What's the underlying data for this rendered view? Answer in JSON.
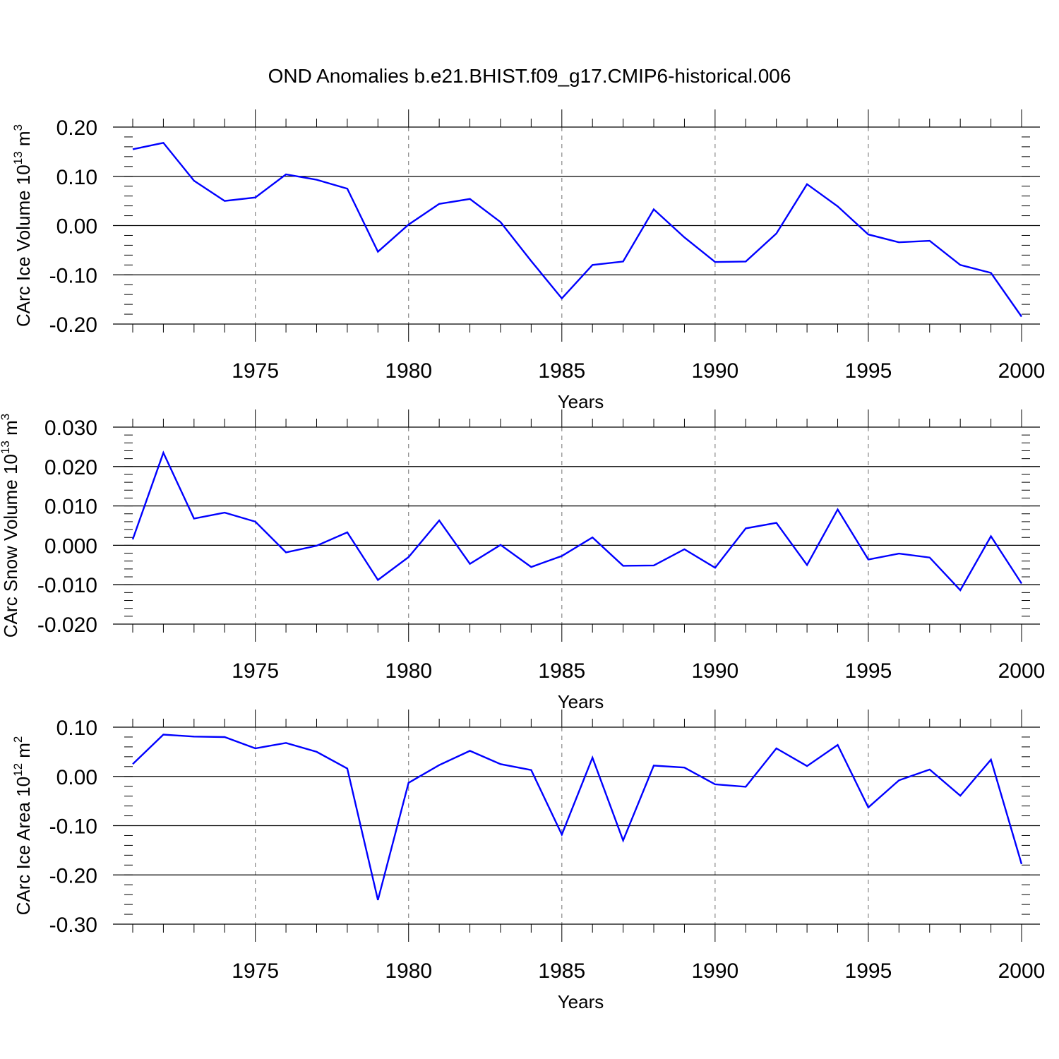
{
  "title": "OND Anomalies b.e21.BHIST.f09_g17.CMIP6-historical.006",
  "colors": {
    "line": "#0000ff",
    "axis": "#000000",
    "grid": "#888888"
  },
  "chart_data": [
    {
      "type": "line",
      "ylabel": "CArc Ice Volume 10",
      "ylabel_exp": "13",
      "ylabel_unit": " m",
      "ylabel_unit_exp": "3",
      "xlabel": "Years",
      "xlim": [
        1971,
        2000
      ],
      "ylim": [
        -0.2,
        0.2
      ],
      "yticks": [
        0.2,
        0.1,
        0.0,
        -0.1,
        -0.2
      ],
      "ytick_labels": [
        "0.20",
        "0.10",
        "0.00",
        "-0.10",
        "-0.20"
      ],
      "ytick_minor_step": 0.02,
      "xticks": [
        1975,
        1980,
        1985,
        1990,
        1995,
        2000
      ],
      "xtick_labels": [
        "1975",
        "1980",
        "1985",
        "1990",
        "1995",
        "2000"
      ],
      "grid_x": [
        1975,
        1980,
        1985,
        1990,
        1995
      ],
      "x": [
        1971,
        1972,
        1973,
        1974,
        1975,
        1976,
        1977,
        1978,
        1979,
        1980,
        1981,
        1982,
        1983,
        1984,
        1985,
        1986,
        1987,
        1988,
        1989,
        1990,
        1991,
        1992,
        1993,
        1994,
        1995,
        1996,
        1997,
        1998,
        1999,
        2000
      ],
      "values": [
        0.155,
        0.168,
        0.091,
        0.05,
        0.057,
        0.104,
        0.093,
        0.075,
        -0.053,
        0.002,
        0.044,
        0.054,
        0.007,
        -0.072,
        -0.148,
        -0.08,
        -0.073,
        0.033,
        -0.024,
        -0.074,
        -0.073,
        -0.016,
        0.084,
        0.039,
        -0.018,
        -0.034,
        -0.031,
        -0.08,
        -0.096,
        -0.185
      ]
    },
    {
      "type": "line",
      "ylabel": "CArc Snow Volume 10",
      "ylabel_exp": "13",
      "ylabel_unit": " m",
      "ylabel_unit_exp": "3",
      "xlabel": "Years",
      "xlim": [
        1971,
        2000
      ],
      "ylim": [
        -0.02,
        0.03
      ],
      "yticks": [
        0.03,
        0.02,
        0.01,
        0.0,
        -0.01,
        -0.02
      ],
      "ytick_labels": [
        "0.030",
        "0.020",
        "0.010",
        "0.000",
        "-0.010",
        "-0.020"
      ],
      "ytick_minor_step": 0.002,
      "xticks": [
        1975,
        1980,
        1985,
        1990,
        1995,
        2000
      ],
      "xtick_labels": [
        "1975",
        "1980",
        "1985",
        "1990",
        "1995",
        "2000"
      ],
      "grid_x": [
        1975,
        1980,
        1985,
        1990,
        1995
      ],
      "x": [
        1971,
        1972,
        1973,
        1974,
        1975,
        1976,
        1977,
        1978,
        1979,
        1980,
        1981,
        1982,
        1983,
        1984,
        1985,
        1986,
        1987,
        1988,
        1989,
        1990,
        1991,
        1992,
        1993,
        1994,
        1995,
        1996,
        1997,
        1998,
        1999,
        2000
      ],
      "values": [
        0.0015,
        0.0235,
        0.0068,
        0.0083,
        0.006,
        -0.0018,
        -0.0001,
        0.0033,
        -0.0088,
        -0.003,
        0.0063,
        -0.0047,
        0.0001,
        -0.0055,
        -0.0027,
        0.002,
        -0.0052,
        -0.0051,
        -0.001,
        -0.0057,
        0.0043,
        0.0057,
        -0.005,
        0.0091,
        -0.0036,
        -0.0021,
        -0.0031,
        -0.0114,
        0.0023,
        -0.0097
      ]
    },
    {
      "type": "line",
      "ylabel": "CArc Ice Area 10",
      "ylabel_exp": "12",
      "ylabel_unit": " m",
      "ylabel_unit_exp": "2",
      "xlabel": "Years",
      "xlim": [
        1971,
        2000
      ],
      "ylim": [
        -0.3,
        0.1
      ],
      "yticks": [
        0.1,
        0.0,
        -0.1,
        -0.2,
        -0.3
      ],
      "ytick_labels": [
        "0.10",
        "0.00",
        "-0.10",
        "-0.20",
        "-0.30"
      ],
      "ytick_minor_step": 0.02,
      "xticks": [
        1975,
        1980,
        1985,
        1990,
        1995,
        2000
      ],
      "xtick_labels": [
        "1975",
        "1980",
        "1985",
        "1990",
        "1995",
        "2000"
      ],
      "grid_x": [
        1975,
        1980,
        1985,
        1990,
        1995
      ],
      "x": [
        1971,
        1972,
        1973,
        1974,
        1975,
        1976,
        1977,
        1978,
        1979,
        1980,
        1981,
        1982,
        1983,
        1984,
        1985,
        1986,
        1987,
        1988,
        1989,
        1990,
        1991,
        1992,
        1993,
        1994,
        1995,
        1996,
        1997,
        1998,
        1999,
        2000
      ],
      "values": [
        0.025,
        0.085,
        0.081,
        0.08,
        0.057,
        0.068,
        0.05,
        0.016,
        -0.251,
        -0.013,
        0.023,
        0.052,
        0.025,
        0.013,
        -0.118,
        0.038,
        -0.13,
        0.022,
        0.018,
        -0.016,
        -0.021,
        0.057,
        0.021,
        0.064,
        -0.063,
        -0.008,
        0.014,
        -0.039,
        0.034,
        -0.178
      ]
    }
  ]
}
